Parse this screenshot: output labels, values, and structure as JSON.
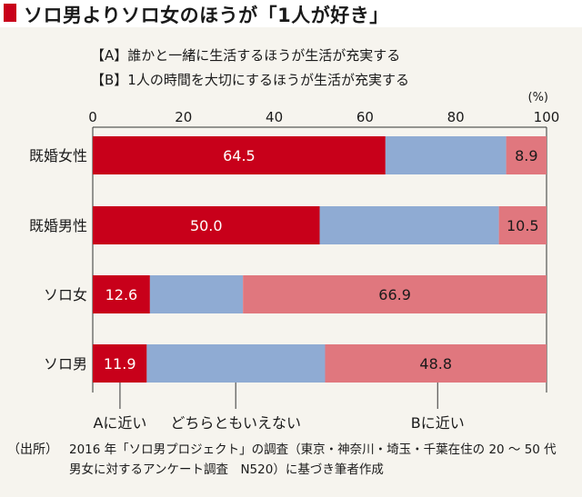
{
  "header": {
    "title": "ソロ男よりソロ女のほうが「1人が好き」"
  },
  "legend": {
    "a": "【A】誰かと一緒に生活するほうが生活が充実する",
    "b": "【B】1人の時間を大切にするほうが生活が充実する"
  },
  "chart_data": {
    "type": "bar",
    "orientation": "horizontal",
    "stacked": true,
    "unit": "(%)",
    "xlim": [
      0,
      100
    ],
    "xticks": [
      "0",
      "20",
      "40",
      "60",
      "80",
      "100"
    ],
    "categories": [
      "既婚女性",
      "既婚男性",
      "ソロ女",
      "ソロ男"
    ],
    "series": [
      {
        "name": "Aに近い",
        "values": [
          64.5,
          50.0,
          12.6,
          11.9
        ],
        "labels": [
          "64.5",
          "50.0",
          "12.6",
          "11.9"
        ],
        "color": "#c8001a"
      },
      {
        "name": "どちらともいえない",
        "values": [
          26.6,
          39.5,
          20.5,
          39.3
        ],
        "labels": [
          "",
          "",
          "",
          ""
        ],
        "color": "#8fabd3"
      },
      {
        "name": "Bに近い",
        "values": [
          8.9,
          10.5,
          66.9,
          48.8
        ],
        "labels": [
          "8.9",
          "10.5",
          "66.9",
          "48.8"
        ],
        "color": "#e0777e"
      }
    ],
    "bottom_labels": [
      {
        "text": "Aに近い",
        "at": 6
      },
      {
        "text": "どちらともいえない",
        "at": 31.5
      },
      {
        "text": "Bに近い",
        "at": 76
      }
    ]
  },
  "source": {
    "label": "（出所）",
    "line1": "2016 年「ソロ男プロジェクト」の調査（東京・神奈川・埼玉・千葉在住の 20 〜 50 代",
    "line2": "男女に対するアンケート調査　N520）に基づき筆者作成"
  }
}
